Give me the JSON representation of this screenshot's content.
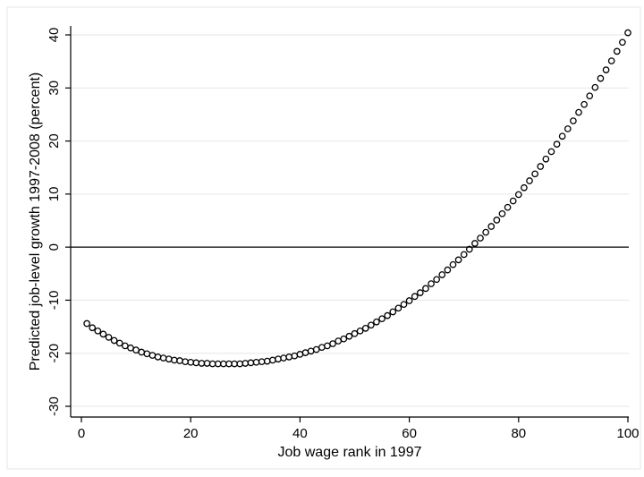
{
  "chart_data": {
    "type": "scatter",
    "xlabel": "Job wage rank in 1997",
    "ylabel": "Predicted job-level growth 1997-2008 (percent)",
    "xlim": [
      0,
      100
    ],
    "ylim": [
      -30,
      40
    ],
    "x_ticks": [
      0,
      20,
      40,
      60,
      80,
      100
    ],
    "y_ticks": [
      -30,
      -20,
      -10,
      0,
      10,
      20,
      30,
      40
    ],
    "grid": true,
    "reference_line_y": 0,
    "marker": "hollow-circle",
    "colors": {
      "marker": "#000000",
      "grid": "#e6e6e6",
      "reference_line": "#000000",
      "axis": "#000000",
      "background": "#ffffff"
    },
    "series": [
      {
        "x": [
          1,
          2,
          3,
          4,
          5,
          6,
          7,
          8,
          9,
          10,
          11,
          12,
          13,
          14,
          15,
          16,
          17,
          18,
          19,
          20,
          21,
          22,
          23,
          24,
          25,
          26,
          27,
          28,
          29,
          30,
          31,
          32,
          33,
          34,
          35,
          36,
          37,
          38,
          39,
          40,
          41,
          42,
          43,
          44,
          45,
          46,
          47,
          48,
          49,
          50,
          51,
          52,
          53,
          54,
          55,
          56,
          57,
          58,
          59,
          60,
          61,
          62,
          63,
          64,
          65,
          66,
          67,
          68,
          69,
          70,
          71,
          72,
          73,
          74,
          75,
          76,
          77,
          78,
          79,
          80,
          81,
          82,
          83,
          84,
          85,
          86,
          87,
          88,
          89,
          90,
          91,
          92,
          93,
          94,
          95,
          96,
          97,
          98,
          99,
          100
        ],
        "y": [
          -14.4,
          -15.2,
          -15.8,
          -16.4,
          -17.0,
          -17.6,
          -18.1,
          -18.6,
          -19.0,
          -19.4,
          -19.8,
          -20.1,
          -20.4,
          -20.7,
          -20.9,
          -21.1,
          -21.3,
          -21.4,
          -21.6,
          -21.7,
          -21.8,
          -21.9,
          -21.9,
          -22.0,
          -22.0,
          -22.0,
          -22.0,
          -22.0,
          -22.0,
          -21.9,
          -21.8,
          -21.7,
          -21.6,
          -21.5,
          -21.3,
          -21.1,
          -20.9,
          -20.7,
          -20.5,
          -20.2,
          -19.9,
          -19.6,
          -19.3,
          -18.9,
          -18.6,
          -18.2,
          -17.7,
          -17.3,
          -16.8,
          -16.3,
          -15.8,
          -15.3,
          -14.7,
          -14.1,
          -13.5,
          -12.9,
          -12.2,
          -11.5,
          -10.8,
          -10.1,
          -9.3,
          -8.6,
          -7.8,
          -6.9,
          -6.1,
          -5.2,
          -4.3,
          -3.3,
          -2.4,
          -1.4,
          -0.4,
          0.7,
          1.7,
          2.8,
          3.9,
          5.1,
          6.3,
          7.5,
          8.7,
          9.9,
          11.2,
          12.5,
          13.8,
          15.2,
          16.6,
          18.0,
          19.4,
          20.9,
          22.3,
          23.8,
          25.4,
          26.9,
          28.5,
          30.1,
          31.8,
          33.4,
          35.1,
          36.9,
          38.6,
          40.4
        ]
      }
    ]
  }
}
